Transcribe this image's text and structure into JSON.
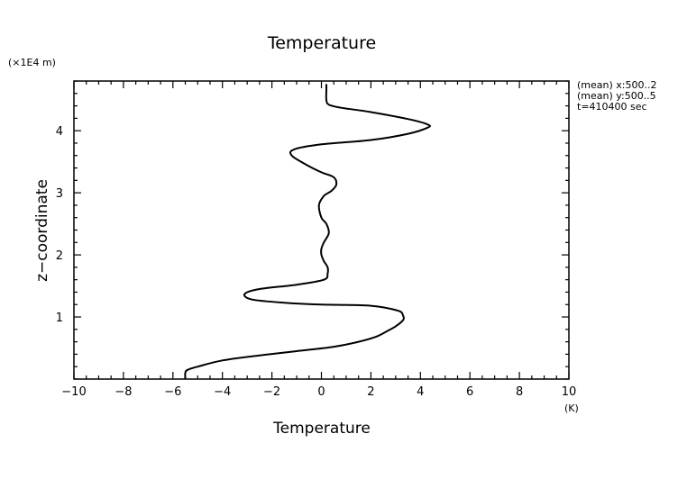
{
  "chart_data": {
    "type": "line",
    "title": "Temperature",
    "xlabel": "Temperature",
    "xunit": "(K)",
    "ylabel": "z−coordinate",
    "yunit": "(×1E4 m)",
    "xlim": [
      -10,
      10
    ],
    "ylim": [
      0,
      4.8
    ],
    "grid": false,
    "xticks": [
      -10,
      -8,
      -6,
      -4,
      -2,
      0,
      2,
      4,
      6,
      8,
      10
    ],
    "xtick_labels": [
      "−10",
      "−8",
      "−6",
      "−4",
      "−2",
      "0",
      "2",
      "4",
      "6",
      "8",
      "10"
    ],
    "yticks": [
      1,
      2,
      3,
      4
    ],
    "ytick_labels": [
      "1",
      "2",
      "3",
      "4"
    ],
    "annotations": [
      "(mean) x:500..2",
      "(mean) y:500..5",
      "t=410400 sec"
    ],
    "series": [
      {
        "x": [
          -5.5,
          -5.5,
          -5.4,
          -5.0,
          -4.0,
          -2.5,
          -1.0,
          0.5,
          1.5,
          2.2,
          2.6,
          3.0,
          3.3,
          3.3,
          3.1,
          2.0,
          0.0,
          -1.5,
          -2.8,
          -3.1,
          -2.5,
          -1.0,
          0.1,
          0.25,
          0.25,
          0.1,
          0.0,
          0.0,
          0.1,
          0.3,
          0.2,
          0.0,
          -0.1,
          0.1,
          0.4,
          0.6,
          0.5,
          0.0,
          -0.6,
          -1.2,
          -1.1,
          0.0,
          2.0,
          3.5,
          4.3,
          4.3,
          3.6,
          2.0,
          0.8,
          0.3,
          0.2,
          0.2,
          0.2
        ],
        "y": [
          0.0,
          0.1,
          0.15,
          0.2,
          0.3,
          0.38,
          0.45,
          0.52,
          0.6,
          0.68,
          0.76,
          0.85,
          0.95,
          1.02,
          1.1,
          1.18,
          1.2,
          1.23,
          1.28,
          1.37,
          1.45,
          1.52,
          1.6,
          1.7,
          1.8,
          1.9,
          2.0,
          2.1,
          2.2,
          2.35,
          2.5,
          2.6,
          2.8,
          2.95,
          3.03,
          3.13,
          3.25,
          3.33,
          3.45,
          3.6,
          3.7,
          3.78,
          3.85,
          3.95,
          4.05,
          4.1,
          4.18,
          4.3,
          4.37,
          4.42,
          4.5,
          4.65,
          4.75
        ]
      }
    ]
  }
}
